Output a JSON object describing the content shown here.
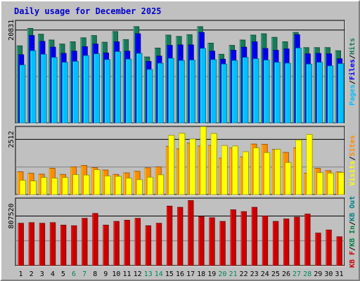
{
  "title": "Daily usage for December 2025",
  "colors": {
    "background": "#c0c0c0",
    "title": "#0000cc",
    "hits": "#1a7a5a",
    "files": "#0000ee",
    "pages": "#00bfff",
    "visits": "#ffff00",
    "sites": "#ff8c00",
    "kb_out": "#008080",
    "kb_in": "#008040",
    "kb_f": "#cc0000",
    "weekend_label": "#00875a",
    "weekday_label": "#000000"
  },
  "chart_data": [
    {
      "type": "bar",
      "title": "Daily usage for December 2025",
      "y_tick_label": "20831",
      "legend": [
        "Pages",
        "Files",
        "Hits"
      ],
      "legend_separator": "/",
      "categories": [
        "1",
        "2",
        "3",
        "4",
        "5",
        "6",
        "7",
        "8",
        "9",
        "10",
        "11",
        "12",
        "13",
        "14",
        "15",
        "16",
        "17",
        "18",
        "19",
        "20",
        "21",
        "22",
        "23",
        "24",
        "25",
        "26",
        "27",
        "28",
        "29",
        "30",
        "31"
      ],
      "ylim": [
        0,
        23000
      ],
      "series": [
        {
          "name": "Hits",
          "values": [
            17300,
            21200,
            19900,
            18600,
            17700,
            18200,
            19100,
            19600,
            18100,
            20500,
            18700,
            21600,
            14800,
            16800,
            19700,
            19400,
            19800,
            21600,
            17900,
            15400,
            17400,
            18600,
            19700,
            20000,
            19200,
            18200,
            20300,
            16900,
            16900,
            16900,
            16200
          ]
        },
        {
          "name": "Files",
          "values": [
            15300,
            19600,
            18300,
            17000,
            15600,
            16100,
            17100,
            17700,
            15700,
            18200,
            16100,
            20000,
            13800,
            15000,
            17400,
            17500,
            17500,
            20300,
            16100,
            14300,
            16300,
            17000,
            18200,
            16700,
            16300,
            16600,
            19800,
            15500,
            15600,
            15500,
            14400
          ]
        },
        {
          "name": "Pages",
          "values": [
            13000,
            16200,
            15400,
            14700,
            13600,
            13800,
            15100,
            15500,
            14200,
            16000,
            14300,
            15600,
            12000,
            13400,
            14500,
            14000,
            14100,
            16700,
            14200,
            13200,
            14000,
            14700,
            14400,
            14100,
            13600,
            13400,
            16800,
            13200,
            13600,
            12800,
            13300
          ]
        }
      ]
    },
    {
      "type": "bar",
      "y_tick_label": "2512",
      "legend": [
        "Visits",
        "Sites"
      ],
      "legend_separator": "/",
      "categories": [
        "1",
        "2",
        "3",
        "4",
        "5",
        "6",
        "7",
        "8",
        "9",
        "10",
        "11",
        "12",
        "13",
        "14",
        "15",
        "16",
        "17",
        "18",
        "19",
        "20",
        "21",
        "22",
        "23",
        "24",
        "25",
        "26",
        "27",
        "28",
        "29",
        "30",
        "31"
      ],
      "ylim": [
        0,
        3100
      ],
      "series": [
        {
          "name": "Sites",
          "values": [
            1040,
            970,
            930,
            1200,
            920,
            1260,
            1330,
            1230,
            1120,
            920,
            990,
            1060,
            1220,
            1260,
            2200,
            2080,
            2350,
            2210,
            2240,
            1660,
            2120,
            1720,
            2300,
            2290,
            2060,
            1920,
            2130,
            980,
            1200,
            1090,
            1030
          ]
        },
        {
          "name": "Visits",
          "values": [
            650,
            620,
            780,
            750,
            780,
            910,
            890,
            1130,
            850,
            830,
            750,
            680,
            790,
            900,
            2700,
            2790,
            2530,
            3090,
            2780,
            2230,
            2210,
            1950,
            2130,
            1910,
            2060,
            1460,
            2490,
            2740,
            1000,
            980,
            1010
          ]
        }
      ]
    },
    {
      "type": "bar",
      "y_tick_label": "807520",
      "legend": [
        "KB F",
        "KB In",
        "KB Out"
      ],
      "legend_separator": "/",
      "categories": [
        "1",
        "2",
        "3",
        "4",
        "5",
        "6",
        "7",
        "8",
        "9",
        "10",
        "11",
        "12",
        "13",
        "14",
        "15",
        "16",
        "17",
        "18",
        "19",
        "20",
        "21",
        "22",
        "23",
        "24",
        "25",
        "26",
        "27",
        "28",
        "29",
        "30",
        "31"
      ],
      "ylim": [
        0,
        1100000
      ],
      "series": [
        {
          "name": "KB F",
          "values": [
            690000,
            700000,
            690000,
            700000,
            660000,
            650000,
            770000,
            850000,
            660000,
            720000,
            740000,
            770000,
            650000,
            690000,
            970000,
            950000,
            1060000,
            800000,
            780000,
            720000,
            910000,
            880000,
            950000,
            810000,
            720000,
            760000,
            790000,
            840000,
            530000,
            580000,
            470000
          ]
        }
      ]
    }
  ],
  "weekend_days": [
    "6",
    "7",
    "13",
    "14",
    "20",
    "21",
    "27",
    "28"
  ]
}
